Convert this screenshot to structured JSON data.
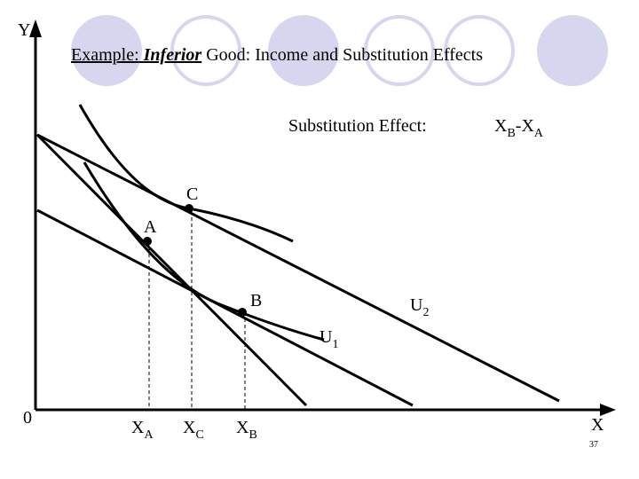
{
  "title": {
    "prefix": "Example:",
    "emphasis": "Inferior",
    "rest": "Good: Income and Substitution Effects"
  },
  "axes": {
    "y": "Y",
    "x": "X",
    "origin": "0"
  },
  "annotation": {
    "label": "Substitution Effect:",
    "formula": {
      "base1": "X",
      "sub1": "B",
      "sep": "-X",
      "sub2": "A"
    }
  },
  "points": [
    {
      "label": "C"
    },
    {
      "label": "A"
    },
    {
      "label": "B"
    }
  ],
  "curves": [
    {
      "base": "U",
      "sub": "2"
    },
    {
      "base": "U",
      "sub": "1"
    }
  ],
  "x_markers": [
    {
      "base": "X",
      "sub": "A"
    },
    {
      "base": "X",
      "sub": "C"
    },
    {
      "base": "X",
      "sub": "B"
    }
  ],
  "page_number": "37"
}
